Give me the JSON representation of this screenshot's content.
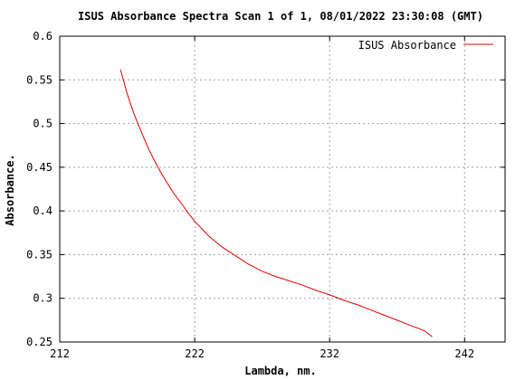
{
  "chart_data": {
    "type": "line",
    "title": "ISUS Absorbance Spectra Scan 1 of 1, 08/01/2022 23:30:08 (GMT)",
    "xlabel": "Lambda, nm.",
    "ylabel": "Absorbance.",
    "xlim": [
      212,
      245
    ],
    "ylim": [
      0.25,
      0.6
    ],
    "x_ticks": [
      "212",
      "222",
      "232",
      "242"
    ],
    "y_ticks": [
      "0.25",
      "0.3",
      "0.35",
      "0.4",
      "0.45",
      "0.5",
      "0.55",
      "0.6"
    ],
    "grid": true,
    "legend_position": "top-right",
    "series": [
      {
        "name": "ISUS Absorbance",
        "color": "#e00000",
        "x": [
          216.5,
          217.0,
          217.5,
          218.0,
          218.5,
          219.0,
          219.5,
          220.0,
          220.5,
          221.0,
          221.5,
          222.0,
          223.0,
          224.0,
          225.0,
          226.0,
          227.0,
          228.0,
          229.0,
          230.0,
          231.0,
          232.0,
          233.0,
          234.0,
          235.0,
          236.0,
          237.0,
          238.0,
          239.0,
          239.6
        ],
        "y": [
          0.562,
          0.534,
          0.511,
          0.492,
          0.474,
          0.458,
          0.444,
          0.431,
          0.419,
          0.409,
          0.398,
          0.388,
          0.372,
          0.359,
          0.349,
          0.339,
          0.331,
          0.325,
          0.32,
          0.315,
          0.309,
          0.304,
          0.298,
          0.293,
          0.287,
          0.281,
          0.275,
          0.269,
          0.263,
          0.256
        ]
      }
    ]
  }
}
